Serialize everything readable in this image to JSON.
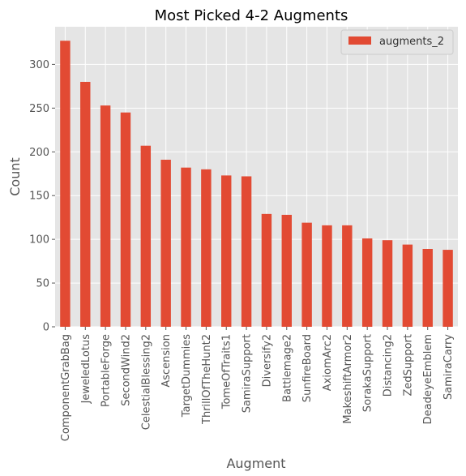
{
  "colors": {
    "plot_background": "#e5e5e5",
    "grid": "#ffffff",
    "bar": "#e24a33",
    "tick_text": "#555555",
    "title_text": "#000000"
  },
  "chart_data": {
    "type": "bar",
    "title": "Most Picked 4-2 Augments",
    "xlabel": "Augment",
    "ylabel": "Count",
    "ylim": [
      0,
      343
    ],
    "yticks": [
      "0",
      "50",
      "100",
      "150",
      "200",
      "250",
      "300"
    ],
    "grid": true,
    "legend_position": "top-right",
    "categories": [
      "ComponentGrabBag",
      "JeweledLotus",
      "PortableForge",
      "SecondWind2",
      "CelestialBlessing2",
      "Ascension",
      "TargetDummies",
      "ThrillOfTheHunt2",
      "TomeOfTraits1",
      "SamiraSupport",
      "Diversify2",
      "Battlemage2",
      "SunfireBoard",
      "AxiomArc2",
      "MakeshiftArmor2",
      "SorakaSupport",
      "Distancing2",
      "ZedSupport",
      "DeadeyeEmblem",
      "SamiraCarry"
    ],
    "series": [
      {
        "name": "augments_2",
        "values": [
          327,
          280,
          253,
          245,
          207,
          191,
          182,
          180,
          173,
          172,
          129,
          128,
          119,
          116,
          116,
          101,
          99,
          94,
          89,
          88
        ]
      }
    ]
  }
}
